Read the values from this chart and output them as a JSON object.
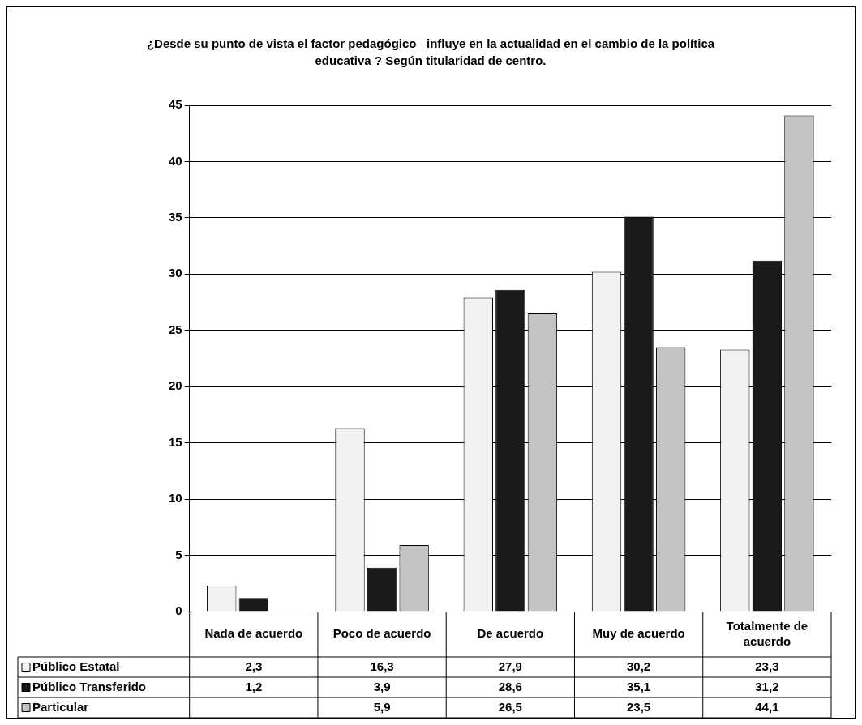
{
  "chart_data": {
    "type": "bar",
    "title": "¿Desde su punto de vista el factor pedagógico   influye en la actualidad en el cambio de la política educativa ? Según titularidad de centro.",
    "categories": [
      "Nada de acuerdo",
      "Poco de acuerdo",
      "De acuerdo",
      "Muy de acuerdo",
      "Totalmente de acuerdo"
    ],
    "series": [
      {
        "name": "Público Estatal",
        "color": "#f2f2f2",
        "values": [
          2.3,
          16.3,
          27.9,
          30.2,
          23.3
        ],
        "value_labels": [
          "2,3",
          "16,3",
          "27,9",
          "30,2",
          "23,3"
        ]
      },
      {
        "name": "Público Transferido",
        "color": "#1a1a1a",
        "values": [
          1.2,
          3.9,
          28.6,
          35.1,
          31.2
        ],
        "value_labels": [
          "1,2",
          "3,9",
          "28,6",
          "35,1",
          "31,2"
        ]
      },
      {
        "name": "Particular",
        "color": "#c4c4c4",
        "values": [
          null,
          5.9,
          26.5,
          23.5,
          44.1
        ],
        "value_labels": [
          null,
          "5,9",
          "26,5",
          "23,5",
          "44,1"
        ]
      }
    ],
    "ylim": [
      0,
      45
    ],
    "yticks": [
      0,
      5,
      10,
      15,
      20,
      25,
      30,
      35,
      40,
      45
    ],
    "grid": "y",
    "legend": "bottom left"
  }
}
